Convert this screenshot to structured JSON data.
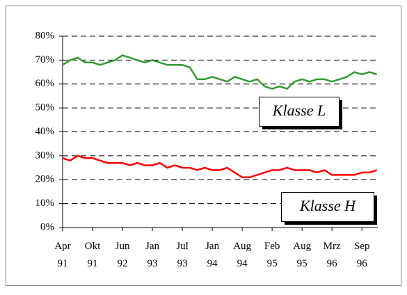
{
  "chart_data": {
    "type": "line",
    "x": [
      0,
      0.25,
      0.5,
      0.75,
      1,
      1.25,
      1.5,
      1.75,
      2,
      2.25,
      2.5,
      2.75,
      3,
      3.25,
      3.5,
      3.75,
      4,
      4.25,
      4.5,
      4.75,
      5,
      5.25,
      5.5,
      5.75,
      6,
      6.25,
      6.5,
      6.75,
      7,
      7.25,
      7.5,
      7.75,
      8,
      8.25,
      8.5,
      8.75,
      9,
      9.25,
      9.5,
      9.75,
      10,
      10.25,
      10.5
    ],
    "series": [
      {
        "name": "Klasse L",
        "color": "#339933",
        "values": [
          68,
          70,
          71,
          69,
          69,
          68,
          69,
          70,
          72,
          71,
          70,
          69,
          70,
          69,
          68,
          68,
          68,
          67,
          62,
          62,
          63,
          62,
          61,
          63,
          62,
          61,
          62,
          59,
          58,
          59,
          58,
          61,
          62,
          61,
          62,
          62,
          61,
          62,
          63,
          65,
          64,
          65,
          64
        ]
      },
      {
        "name": "Klasse H",
        "color": "#ff0000",
        "values": [
          29,
          28,
          30,
          29,
          29,
          28,
          27,
          27,
          27,
          26,
          27,
          26,
          26,
          27,
          25,
          26,
          25,
          25,
          24,
          25,
          24,
          24,
          25,
          23,
          21,
          21,
          22,
          23,
          24,
          24,
          25,
          24,
          24,
          24,
          23,
          24,
          22,
          22,
          22,
          22,
          23,
          23,
          24
        ]
      }
    ],
    "xlim": [
      0,
      10.53
    ],
    "xticks": [
      {
        "value": 0,
        "label": "Apr 91"
      },
      {
        "value": 1,
        "label": "Okt 91"
      },
      {
        "value": 2,
        "label": "Jun 92"
      },
      {
        "value": 3,
        "label": "Jan 93"
      },
      {
        "value": 4,
        "label": "Jul 93"
      },
      {
        "value": 5,
        "label": "Jan 94"
      },
      {
        "value": 6,
        "label": "Aug 94"
      },
      {
        "value": 7,
        "label": "Feb 95"
      },
      {
        "value": 8,
        "label": "Aug 95"
      },
      {
        "value": 9,
        "label": "Mrz 96"
      },
      {
        "value": 10,
        "label": "Sep 96"
      }
    ],
    "ylim": [
      0,
      80
    ],
    "yticks": [
      {
        "value": 0,
        "label": "0%"
      },
      {
        "value": 10,
        "label": "10%"
      },
      {
        "value": 20,
        "label": "20%"
      },
      {
        "value": 30,
        "label": "30%"
      },
      {
        "value": 40,
        "label": "40%"
      },
      {
        "value": 50,
        "label": "50%"
      },
      {
        "value": 60,
        "label": "60%"
      },
      {
        "value": 70,
        "label": "70%"
      },
      {
        "value": 80,
        "label": "80%"
      }
    ],
    "grid": true
  }
}
